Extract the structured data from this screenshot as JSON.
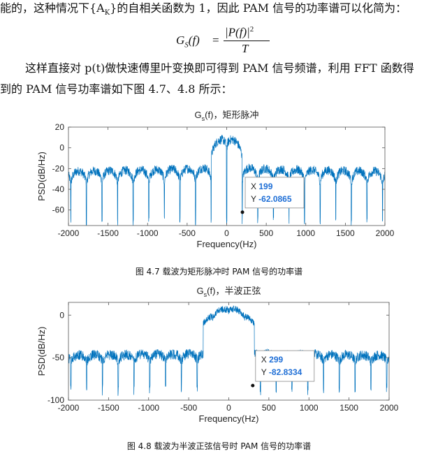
{
  "text": {
    "line1": "能的，这种情况下{A",
    "line1_sub": "K",
    "line1_rest": "}的自相关函数为 1，因此 PAM 信号的功率谱可以化简为：",
    "formula_lhs": "G",
    "formula_lhs_sub": "S",
    "formula_lhs_arg": "(f)",
    "formula_eq": "=",
    "formula_num": "|P(f)|",
    "formula_num_sup": "2",
    "formula_den": "T",
    "para1": "这样直接对 p(t)做快速傅里叶变换即可得到 PAM 信号频谱，利用 FFT 函数得",
    "para2": "到的 PAM 信号功率谱如下图 4.7、4.8 所示：",
    "caption1": "图 4.7  载波为矩形脉冲时 PAM 信号的功率谱",
    "caption2": "图 4.8  载波为半波正弦信号时 PAM 信号的功率谱"
  },
  "chart_data": [
    {
      "type": "line",
      "title_main": "G",
      "title_sub": "s",
      "title_rest": "(f)，矩形脉冲",
      "xlabel": "Frequency(Hz)",
      "ylabel": "PSD(dB/Hz)",
      "xlim": [
        -2000,
        2000
      ],
      "ylim": [
        -75,
        20
      ],
      "xticks": [
        -2000,
        -1500,
        -1000,
        -500,
        0,
        500,
        1000,
        1500,
        2000
      ],
      "yticks": [
        20,
        0,
        -20,
        -40,
        -60
      ],
      "color": "#0072BD",
      "envelope": "sinc-rect",
      "datatip": {
        "x": 199,
        "y": -62.0865,
        "label_x": "X",
        "label_y": "Y",
        "x_text": "199",
        "y_text": "-62.0865"
      }
    },
    {
      "type": "line",
      "title_main": "G",
      "title_sub": "s",
      "title_rest": "(f)，半波正弦",
      "xlabel": "Frequency(Hz)",
      "ylabel": "PSD(dB/Hz)",
      "xlim": [
        -2000,
        2000
      ],
      "ylim": [
        -100,
        15
      ],
      "xticks": [
        -2000,
        -1500,
        -1000,
        -500,
        0,
        500,
        1000,
        1500,
        2000
      ],
      "yticks": [
        0,
        -50,
        -100
      ],
      "color": "#0072BD",
      "envelope": "half-sine",
      "datatip": {
        "x": 299,
        "y": -82.8334,
        "label_x": "X",
        "label_y": "Y",
        "x_text": "299",
        "y_text": "-82.8334"
      }
    }
  ]
}
